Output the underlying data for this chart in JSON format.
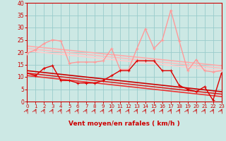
{
  "xlabel": "Vent moyen/en rafales ( km/h )",
  "bg_color": "#cce8e4",
  "grid_color": "#99cccc",
  "xlim": [
    0,
    23
  ],
  "ylim": [
    0,
    40
  ],
  "yticks": [
    0,
    5,
    10,
    15,
    20,
    25,
    30,
    35,
    40
  ],
  "xticks": [
    0,
    1,
    2,
    3,
    4,
    5,
    6,
    7,
    8,
    9,
    10,
    11,
    12,
    13,
    14,
    15,
    16,
    17,
    18,
    19,
    20,
    21,
    22,
    23
  ],
  "series": [
    {
      "label": "rafales",
      "x": [
        0,
        1,
        2,
        3,
        4,
        5,
        6,
        7,
        8,
        9,
        10,
        11,
        12,
        13,
        14,
        15,
        16,
        17,
        18,
        19,
        20,
        21,
        22,
        23
      ],
      "y": [
        19.5,
        21.0,
        23.5,
        25.0,
        24.5,
        15.5,
        16.0,
        16.0,
        16.0,
        16.5,
        21.5,
        13.0,
        13.0,
        21.5,
        29.5,
        21.5,
        25.0,
        37.0,
        24.5,
        12.5,
        17.0,
        12.5,
        12.0,
        12.5
      ],
      "color": "#ff9999",
      "lw": 1.0,
      "marker": "+",
      "ms": 3.5
    },
    {
      "label": "trend_rafales_1",
      "x": [
        0,
        23
      ],
      "y": [
        22.5,
        14.5
      ],
      "color": "#ffaaaa",
      "lw": 1.2,
      "marker": null
    },
    {
      "label": "trend_rafales_2",
      "x": [
        0,
        23
      ],
      "y": [
        21.5,
        13.5
      ],
      "color": "#ffbbbb",
      "lw": 1.2,
      "marker": null
    },
    {
      "label": "trend_rafales_3",
      "x": [
        0,
        23
      ],
      "y": [
        20.5,
        12.5
      ],
      "color": "#ffcccc",
      "lw": 1.2,
      "marker": null
    },
    {
      "label": "moyen",
      "x": [
        0,
        1,
        2,
        3,
        4,
        5,
        6,
        7,
        8,
        9,
        10,
        11,
        12,
        13,
        14,
        15,
        16,
        17,
        18,
        19,
        20,
        21,
        22,
        23
      ],
      "y": [
        11.5,
        10.5,
        13.5,
        14.5,
        8.5,
        8.5,
        7.5,
        7.5,
        7.5,
        8.5,
        10.5,
        12.5,
        12.5,
        16.5,
        16.5,
        16.5,
        12.5,
        12.5,
        6.5,
        5.0,
        4.0,
        6.0,
        0.5,
        11.5
      ],
      "color": "#dd0000",
      "lw": 1.0,
      "marker": "+",
      "ms": 3.5
    },
    {
      "label": "trend_moyen_1",
      "x": [
        0,
        23
      ],
      "y": [
        12.5,
        4.0
      ],
      "color": "#cc0000",
      "lw": 1.2,
      "marker": null
    },
    {
      "label": "trend_moyen_2",
      "x": [
        0,
        23
      ],
      "y": [
        11.5,
        3.0
      ],
      "color": "#dd2222",
      "lw": 1.2,
      "marker": null
    },
    {
      "label": "trend_moyen_3",
      "x": [
        0,
        23
      ],
      "y": [
        10.5,
        2.0
      ],
      "color": "#ee3333",
      "lw": 1.2,
      "marker": null
    }
  ]
}
